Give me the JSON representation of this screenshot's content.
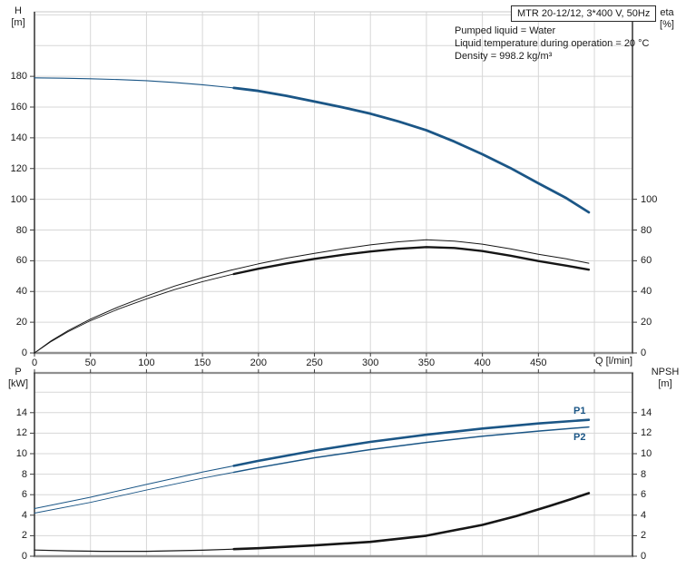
{
  "title_box": "MTR 20-12/12, 3*400 V, 50Hz",
  "info_lines": [
    "Pumped liquid = Water",
    "Liquid temperature during operation = 20 °C",
    "Density = 998.2 kg/m³"
  ],
  "axes": {
    "h": {
      "line1": "H",
      "line2": "[m]"
    },
    "eta": {
      "line1": "eta",
      "line2": "[%]"
    },
    "p": {
      "line1": "P",
      "line2": "[kW]"
    },
    "npsh": {
      "line1": "NPSH",
      "line2": "[m]"
    },
    "x_label": "Q [l/min]"
  },
  "curve_labels": {
    "p1": "P1",
    "p2": "P2"
  },
  "colors": {
    "curve_blue": "#1b5686",
    "curve_black": "#161616",
    "grid": "#d7d7d7",
    "frame_dark": "#3d3d3d",
    "frame_gray": "#909090",
    "text": "#1a1a1a",
    "label_blue": "#1b5686"
  },
  "chart_data": [
    {
      "panel": "top",
      "type": "line",
      "x_axis": {
        "label": "Q [l/min]",
        "min": 0,
        "max": 534,
        "tick_marks": [
          0,
          50,
          100,
          150,
          200,
          250,
          300,
          350,
          400,
          450,
          500
        ],
        "tick_labels": [
          0,
          50,
          100,
          150,
          200,
          250,
          300,
          350,
          400,
          450
        ],
        "grid": [
          50,
          100,
          150,
          200,
          250,
          300,
          350,
          400,
          450,
          500
        ]
      },
      "y_left": {
        "label": "H [m]",
        "min": 0,
        "max": 222,
        "tick_labels": [
          0,
          20,
          40,
          60,
          80,
          100,
          120,
          140,
          160,
          180
        ],
        "grid": [
          20,
          40,
          60,
          80,
          100,
          120,
          140,
          160,
          180,
          200,
          220
        ]
      },
      "y_right": {
        "label": "eta [%]",
        "min": 0,
        "tick_labels": [
          0,
          20,
          40,
          60,
          80,
          100
        ]
      },
      "series": [
        {
          "name": "head-curve",
          "axis": "left",
          "color": "curve_blue",
          "w": 1.1,
          "w_bold": 2.8,
          "bold_from": 178,
          "points": [
            [
              0,
              179
            ],
            [
              25,
              178.8
            ],
            [
              50,
              178.4
            ],
            [
              75,
              177.9
            ],
            [
              100,
              177.2
            ],
            [
              125,
              176
            ],
            [
              150,
              174.5
            ],
            [
              175,
              172.7
            ],
            [
              200,
              170.5
            ],
            [
              225,
              167.3
            ],
            [
              250,
              163.6
            ],
            [
              275,
              159.9
            ],
            [
              300,
              155.7
            ],
            [
              325,
              150.7
            ],
            [
              350,
              144.9
            ],
            [
              375,
              137.5
            ],
            [
              400,
              129.3
            ],
            [
              425,
              120.3
            ],
            [
              450,
              110.4
            ],
            [
              475,
              100.7
            ],
            [
              495,
              91.5
            ]
          ]
        },
        {
          "name": "eta-pump-curve",
          "axis": "right",
          "color": "curve_black",
          "w": 1.0,
          "points": [
            [
              0,
              0
            ],
            [
              15,
              8
            ],
            [
              30,
              14.5
            ],
            [
              50,
              22
            ],
            [
              75,
              30
            ],
            [
              100,
              37
            ],
            [
              125,
              43.5
            ],
            [
              150,
              49
            ],
            [
              175,
              53.8
            ],
            [
              200,
              58
            ],
            [
              225,
              61.7
            ],
            [
              250,
              64.8
            ],
            [
              275,
              67.8
            ],
            [
              300,
              70.3
            ],
            [
              325,
              72.3
            ],
            [
              350,
              73.6
            ],
            [
              375,
              72.8
            ],
            [
              400,
              70.8
            ],
            [
              425,
              67.8
            ],
            [
              450,
              64.2
            ],
            [
              475,
              61.2
            ],
            [
              495,
              58.4
            ]
          ]
        },
        {
          "name": "eta-total-curve",
          "axis": "right",
          "color": "curve_black",
          "w": 0.9,
          "w_bold": 2.4,
          "bold_from": 178,
          "points": [
            [
              0,
              0
            ],
            [
              15,
              7.5
            ],
            [
              30,
              13.8
            ],
            [
              50,
              21
            ],
            [
              75,
              28.6
            ],
            [
              100,
              35.2
            ],
            [
              125,
              41.2
            ],
            [
              150,
              46.4
            ],
            [
              175,
              50.9
            ],
            [
              200,
              54.8
            ],
            [
              225,
              58.2
            ],
            [
              250,
              61.2
            ],
            [
              275,
              63.8
            ],
            [
              300,
              66
            ],
            [
              325,
              67.8
            ],
            [
              350,
              68.9
            ],
            [
              375,
              68.3
            ],
            [
              400,
              66.3
            ],
            [
              425,
              63.3
            ],
            [
              450,
              59.8
            ],
            [
              475,
              56.8
            ],
            [
              495,
              54.2
            ]
          ]
        }
      ]
    },
    {
      "panel": "bottom",
      "type": "line",
      "x_axis": {
        "label": "",
        "min": 0,
        "max": 534,
        "tick_marks": [
          0,
          50,
          100,
          150,
          200,
          250,
          300,
          350,
          400,
          450,
          500
        ],
        "tick_labels": [],
        "grid": [
          50,
          100,
          150,
          200,
          250,
          300,
          350,
          400,
          450,
          500
        ]
      },
      "y_left": {
        "label": "P [kW]",
        "min": 0,
        "max": 17.9,
        "tick_labels": [
          0,
          2,
          4,
          6,
          8,
          10,
          12,
          14
        ],
        "grid": [
          2,
          4,
          6,
          8,
          10,
          12,
          14,
          16
        ]
      },
      "y_right": {
        "label": "NPSH [m]",
        "min": 0,
        "tick_labels": [
          0,
          2,
          4,
          6,
          8,
          10,
          12,
          14
        ]
      },
      "series": [
        {
          "name": "p1-power-curve",
          "label": "P1",
          "axis": "left",
          "color": "curve_blue",
          "w": 1.0,
          "w_bold": 2.6,
          "bold_from": 178,
          "points": [
            [
              0,
              4.65
            ],
            [
              50,
              5.75
            ],
            [
              100,
              7.0
            ],
            [
              150,
              8.2
            ],
            [
              200,
              9.3
            ],
            [
              250,
              10.3
            ],
            [
              300,
              11.15
            ],
            [
              350,
              11.85
            ],
            [
              400,
              12.45
            ],
            [
              450,
              12.95
            ],
            [
              495,
              13.3
            ]
          ]
        },
        {
          "name": "p2-power-curve",
          "label": "P2",
          "axis": "left",
          "color": "curve_blue",
          "w": 0.9,
          "w_bold": 1.5,
          "bold_from": 178,
          "points": [
            [
              0,
              4.2
            ],
            [
              50,
              5.25
            ],
            [
              100,
              6.45
            ],
            [
              150,
              7.6
            ],
            [
              200,
              8.65
            ],
            [
              250,
              9.6
            ],
            [
              300,
              10.4
            ],
            [
              350,
              11.1
            ],
            [
              400,
              11.7
            ],
            [
              450,
              12.2
            ],
            [
              495,
              12.6
            ]
          ]
        },
        {
          "name": "npsh-curve",
          "axis": "right",
          "color": "curve_black",
          "w": 1.2,
          "w_bold": 2.6,
          "bold_from": 178,
          "points": [
            [
              0,
              0.6
            ],
            [
              30,
              0.52
            ],
            [
              60,
              0.48
            ],
            [
              100,
              0.48
            ],
            [
              150,
              0.58
            ],
            [
              200,
              0.78
            ],
            [
              250,
              1.05
            ],
            [
              300,
              1.4
            ],
            [
              350,
              2.0
            ],
            [
              400,
              3.05
            ],
            [
              430,
              3.9
            ],
            [
              460,
              4.9
            ],
            [
              480,
              5.6
            ],
            [
              495,
              6.15
            ]
          ]
        }
      ]
    }
  ]
}
